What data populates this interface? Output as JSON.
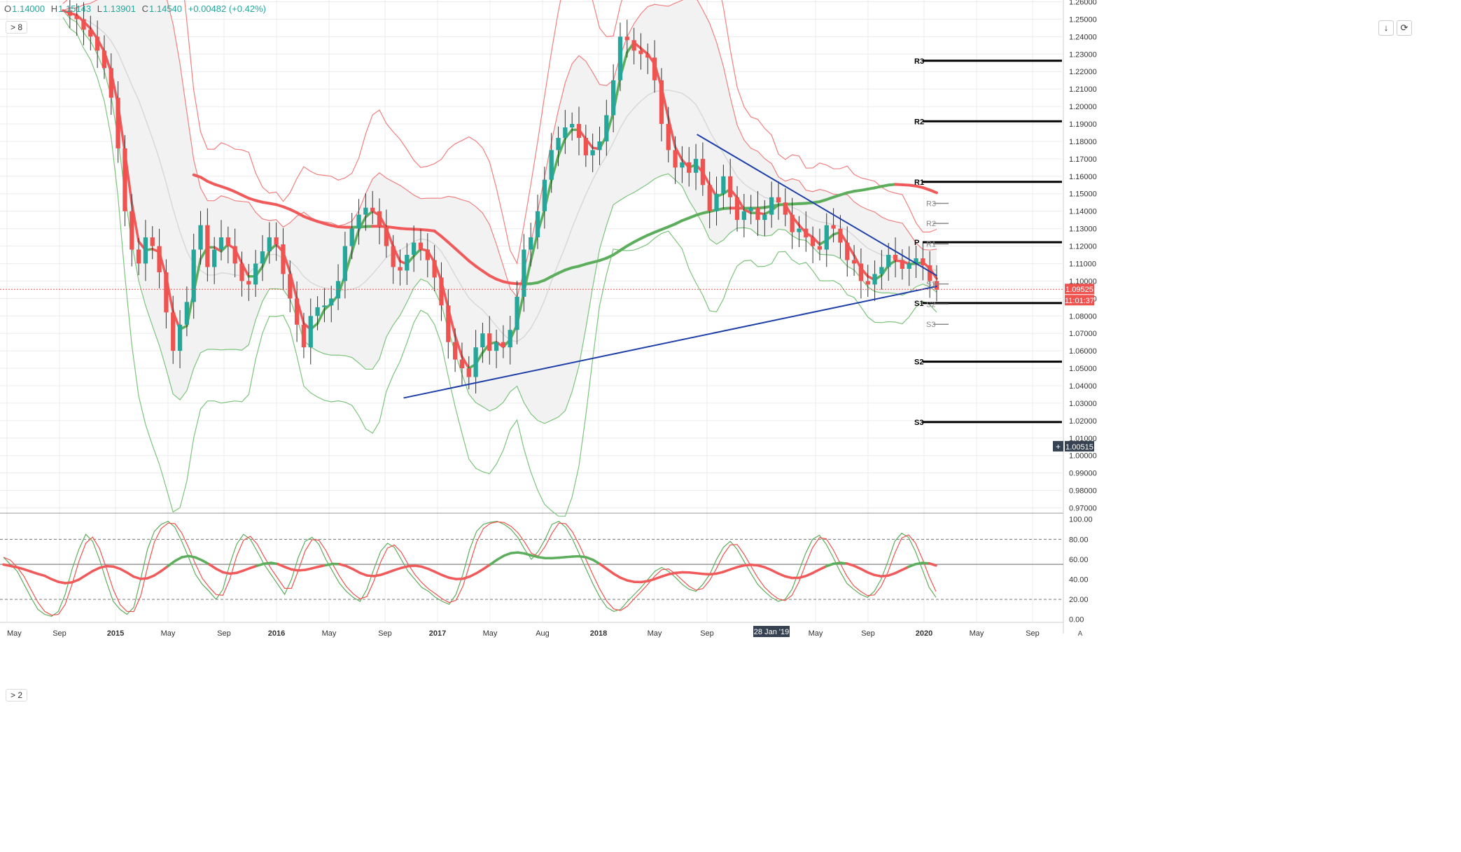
{
  "header": {
    "open_label": "O",
    "open": "1.14000",
    "high_label": "H",
    "high": "1.15143",
    "low_label": "L",
    "low": "1.13901",
    "close_label": "C",
    "close": "1.14540",
    "change": "+0.00482 (+0.42%)",
    "price_pane_legend": "> 8",
    "osc_pane_legend": "> 2"
  },
  "toolbar": {
    "collapse_icon": "arrow-down-icon",
    "fullscreen_icon": "square-icon"
  },
  "colors": {
    "up": "#26a69a",
    "down": "#ef5350",
    "ma_red": "#f05a5a",
    "ma_green": "#5cae5c",
    "trendline": "#1e3fa8",
    "pivot": "#000000",
    "bb_fill": "#f2f2f2",
    "grid": "#ececec"
  },
  "price_axis": {
    "ticks": [
      "1.26000",
      "1.25000",
      "1.24000",
      "1.23000",
      "1.22000",
      "1.21000",
      "1.20000",
      "1.19000",
      "1.18000",
      "1.17000",
      "1.16000",
      "1.15000",
      "1.14000",
      "1.13000",
      "1.12000",
      "1.11000",
      "1.10000",
      "1.09000",
      "1.08000",
      "1.07000",
      "1.06000",
      "1.05000",
      "1.04000",
      "1.03000",
      "1.02000",
      "1.01000",
      "1.00000",
      "0.99000",
      "0.98000",
      "0.97000"
    ],
    "last_price_label": "1.09525",
    "countdown_label": "11:01:37",
    "crosshair_label": "1.00515",
    "crosshair_plus": "+"
  },
  "osc_axis": {
    "ticks": [
      "100.00",
      "80.00",
      "60.00",
      "40.00",
      "20.00",
      "0.00"
    ]
  },
  "time_axis": {
    "labels": [
      "May",
      "Sep",
      "2015",
      "May",
      "Sep",
      "2016",
      "May",
      "Sep",
      "2017",
      "May",
      "Aug",
      "2018",
      "May",
      "Sep",
      "May",
      "Sep",
      "2020",
      "May",
      "Sep"
    ],
    "crosshair_date": "28 Jan '19",
    "corner": "A"
  },
  "chart_data": [
    {
      "type": "candlestick",
      "title": "",
      "ylim": [
        0.967,
        1.261
      ],
      "x_range": [
        "2014-05",
        "2020-12"
      ],
      "closes_weekly_approx": [
        1.255,
        1.252,
        1.25,
        1.244,
        1.24,
        1.232,
        1.222,
        1.205,
        1.176,
        1.14,
        1.118,
        1.11,
        1.125,
        1.12,
        1.105,
        1.082,
        1.06,
        1.075,
        1.088,
        1.118,
        1.132,
        1.108,
        1.118,
        1.125,
        1.12,
        1.11,
        1.1,
        1.098,
        1.11,
        1.117,
        1.125,
        1.121,
        1.104,
        1.09,
        1.075,
        1.062,
        1.08,
        1.085,
        1.086,
        1.09,
        1.1,
        1.12,
        1.13,
        1.138,
        1.142,
        1.14,
        1.131,
        1.12,
        1.108,
        1.106,
        1.115,
        1.122,
        1.118,
        1.112,
        1.102,
        1.086,
        1.065,
        1.055,
        1.05,
        1.045,
        1.062,
        1.07,
        1.06,
        1.065,
        1.062,
        1.072,
        1.091,
        1.118,
        1.125,
        1.14,
        1.158,
        1.175,
        1.182,
        1.188,
        1.19,
        1.182,
        1.172,
        1.175,
        1.18,
        1.195,
        1.215,
        1.24,
        1.238,
        1.232,
        1.23,
        1.228,
        1.215,
        1.19,
        1.175,
        1.165,
        1.168,
        1.162,
        1.17,
        1.155,
        1.14,
        1.15,
        1.16,
        1.148,
        1.135,
        1.14,
        1.142,
        1.135,
        1.138,
        1.148,
        1.145,
        1.138,
        1.128,
        1.13,
        1.125,
        1.12,
        1.118,
        1.132,
        1.13,
        1.122,
        1.112,
        1.11,
        1.1,
        1.098,
        1.104,
        1.108,
        1.115,
        1.112,
        1.107,
        1.11,
        1.113,
        1.109,
        1.1,
        1.095
      ],
      "pivots": [
        {
          "label": "R3",
          "value": 1.2262
        },
        {
          "label": "R2",
          "value": 1.1915
        },
        {
          "label": "R1",
          "value": 1.1568
        },
        {
          "label": "P",
          "value": 1.1222
        },
        {
          "label": "S1",
          "value": 1.0874
        },
        {
          "label": "S2",
          "value": 1.0538
        },
        {
          "label": "S3",
          "value": 1.0192
        }
      ],
      "pivots_recent": [
        {
          "label": "R3",
          "value": 1.1445
        },
        {
          "label": "R2",
          "value": 1.133
        },
        {
          "label": "R1",
          "value": 1.1212
        },
        {
          "label": "S1",
          "value": 1.0983
        },
        {
          "label": "S2",
          "value": 1.0868
        },
        {
          "label": "S3",
          "value": 1.0752
        }
      ],
      "trendlines": [
        {
          "from": [
            "2016-11",
            1.033
          ],
          "to": [
            "2020-03",
            1.097
          ]
        },
        {
          "from": [
            "2018-09",
            1.184
          ],
          "to": [
            "2020-03",
            1.103
          ]
        }
      ]
    },
    {
      "type": "line",
      "title": "",
      "ylim": [
        -3,
        104
      ],
      "levels": [
        80,
        55,
        20
      ],
      "series": [
        {
          "values": [
            62,
            55,
            48,
            35,
            22,
            10,
            5,
            3,
            8,
            25,
            50,
            70,
            85,
            78,
            60,
            38,
            18,
            10,
            5,
            12,
            40,
            70,
            88,
            95,
            98,
            92,
            78,
            62,
            45,
            35,
            28,
            20,
            30,
            55,
            75,
            85,
            80,
            68,
            55,
            45,
            35,
            25,
            40,
            62,
            78,
            82,
            75,
            60,
            48,
            36,
            28,
            22,
            18,
            30,
            50,
            68,
            76,
            72,
            60,
            48,
            40,
            32,
            28,
            22,
            18,
            15,
            25,
            45,
            70,
            88,
            95,
            97,
            98,
            95,
            90,
            82,
            70,
            60,
            68,
            80,
            95,
            98,
            92,
            80,
            65,
            50,
            35,
            22,
            12,
            8,
            10,
            18,
            25,
            32,
            40,
            48,
            52,
            48,
            42,
            35,
            30,
            28,
            35,
            45,
            60,
            72,
            78,
            70,
            58,
            46,
            35,
            28,
            22,
            18,
            20,
            30,
            48,
            66,
            80,
            84,
            75,
            62,
            48,
            36,
            30,
            25,
            22,
            28,
            40,
            58,
            78,
            86,
            82,
            68,
            50,
            32,
            22
          ]
        }
      ]
    }
  ]
}
